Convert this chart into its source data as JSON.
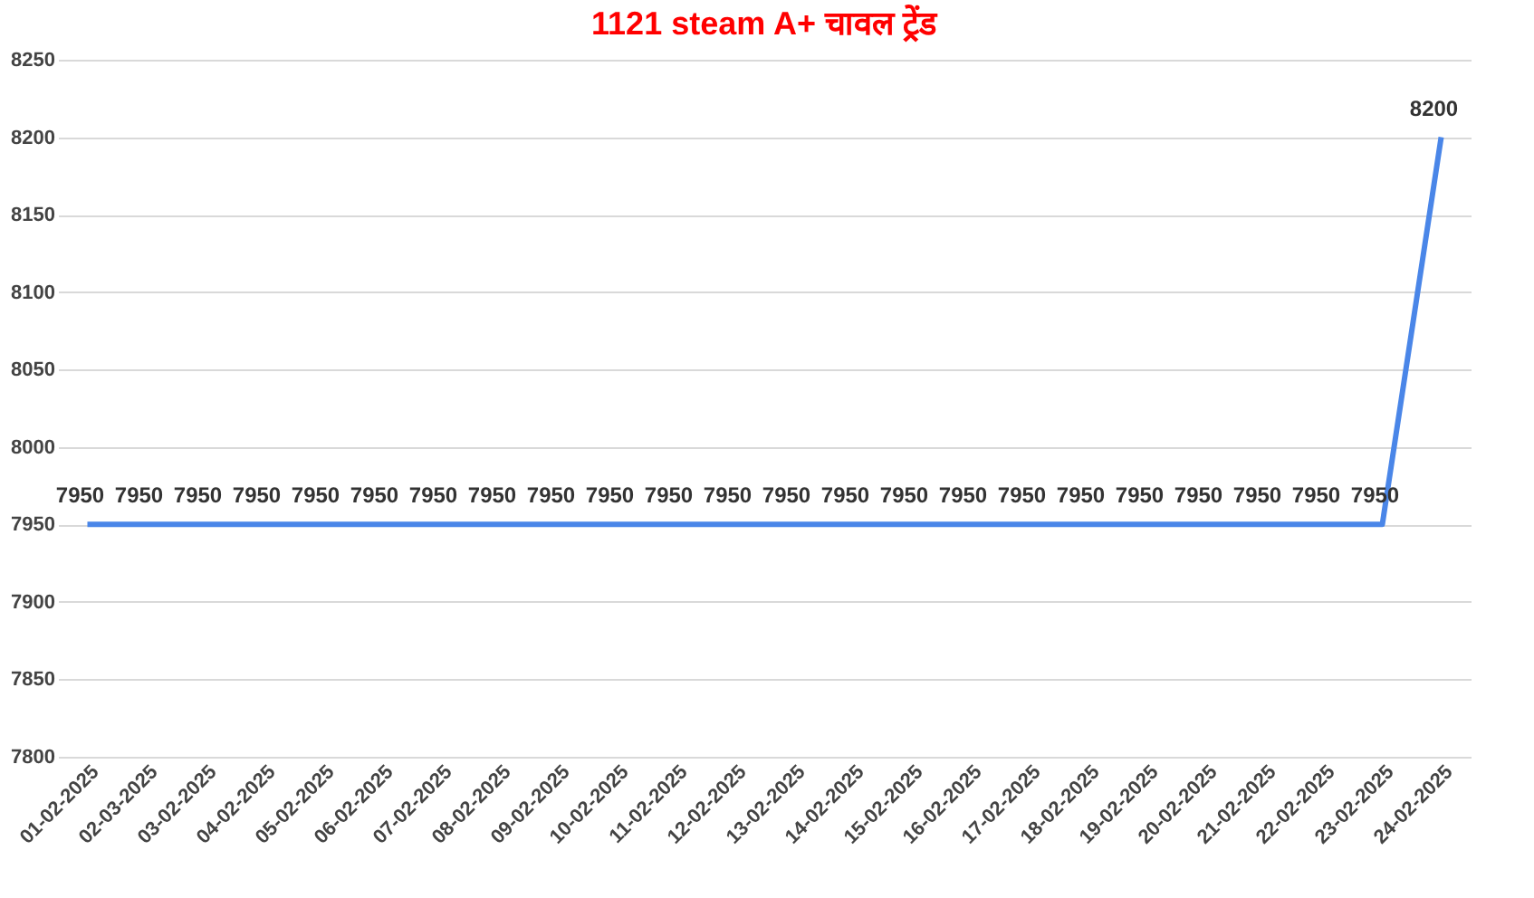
{
  "chart_data": {
    "type": "line",
    "title": "1121 steam A+ चावल ट्रेंड",
    "categories": [
      "01-02-2025",
      "02-03-2025",
      "03-02-2025",
      "04-02-2025",
      "05-02-2025",
      "06-02-2025",
      "07-02-2025",
      "08-02-2025",
      "09-02-2025",
      "10-02-2025",
      "11-02-2025",
      "12-02-2025",
      "13-02-2025",
      "14-02-2025",
      "15-02-2025",
      "16-02-2025",
      "17-02-2025",
      "18-02-2025",
      "19-02-2025",
      "20-02-2025",
      "21-02-2025",
      "22-02-2025",
      "23-02-2025",
      "24-02-2025"
    ],
    "series": [
      {
        "color": "#4a86e8",
        "values": [
          7950,
          7950,
          7950,
          7950,
          7950,
          7950,
          7950,
          7950,
          7950,
          7950,
          7950,
          7950,
          7950,
          7950,
          7950,
          7950,
          7950,
          7950,
          7950,
          7950,
          7950,
          7950,
          7950,
          8200
        ]
      }
    ],
    "ylim": [
      7800,
      8250
    ],
    "yticks": [
      7800,
      7850,
      7900,
      7950,
      8000,
      8050,
      8100,
      8150,
      8200,
      8250
    ],
    "grid": "y",
    "data_labels": true,
    "marker": "none",
    "line_style": "solid"
  }
}
